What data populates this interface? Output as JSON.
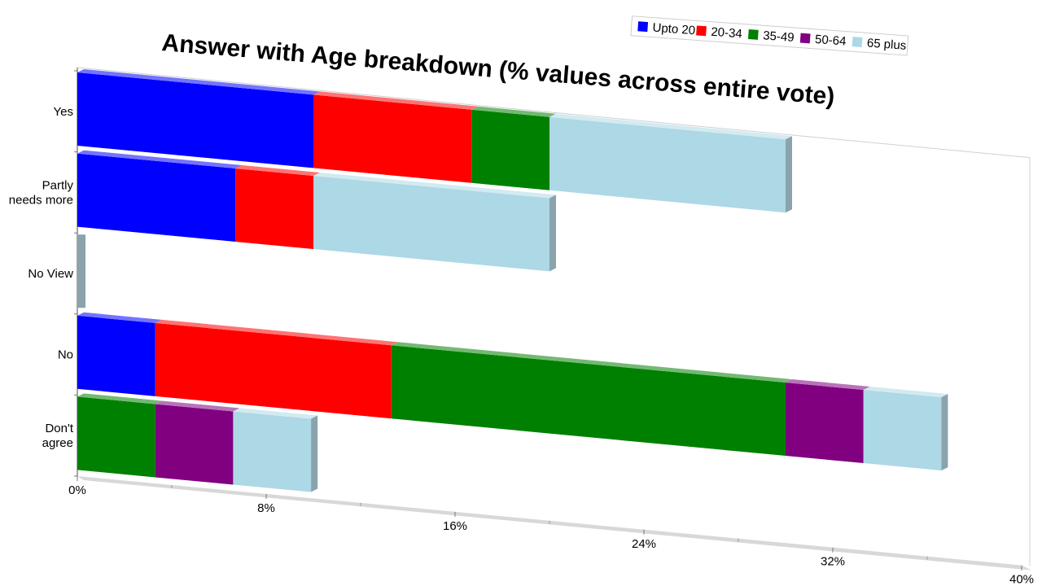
{
  "chart_data": {
    "type": "bar",
    "orientation": "horizontal",
    "stacked": true,
    "style": "3d-perspective",
    "title": "Answer with Age breakdown (% values across entire vote)",
    "xlabel": "",
    "ylabel": "",
    "xlim": [
      0,
      40
    ],
    "x_ticks": [
      "0%",
      "8%",
      "16%",
      "24%",
      "32%",
      "40%"
    ],
    "legend_position": "top-right",
    "categories": [
      {
        "label": "Yes",
        "lines": [
          "Yes"
        ]
      },
      {
        "label": "Partly needs more",
        "lines": [
          "Partly",
          "needs more"
        ]
      },
      {
        "label": "No View",
        "lines": [
          "No View"
        ]
      },
      {
        "label": "No",
        "lines": [
          "No"
        ]
      },
      {
        "label": "Don't agree",
        "lines": [
          "Don't",
          "agree"
        ]
      }
    ],
    "series": [
      {
        "name": "Upto 20",
        "color": "#0000ff",
        "values": [
          10,
          6.7,
          0,
          3.3,
          0
        ]
      },
      {
        "name": "20-34",
        "color": "#ff0000",
        "values": [
          6.7,
          3.3,
          0,
          10,
          0
        ]
      },
      {
        "name": "35-49",
        "color": "#008000",
        "values": [
          3.3,
          0,
          0,
          16.7,
          3.3
        ]
      },
      {
        "name": "50-64",
        "color": "#800080",
        "values": [
          0,
          0,
          0,
          3.3,
          3.3
        ]
      },
      {
        "name": "65 plus",
        "color": "#add8e6",
        "values": [
          10,
          10,
          0,
          3.3,
          3.3
        ]
      }
    ]
  }
}
